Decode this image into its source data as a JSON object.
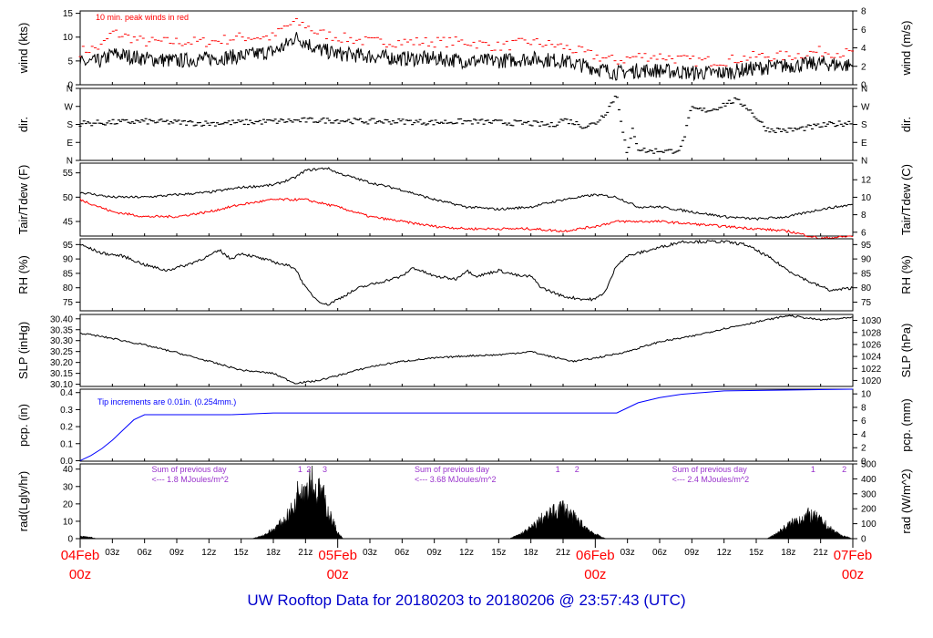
{
  "page_title": "UW Rooftop Data for 20180203  to  20180206 @ 23:57:43  (UTC)",
  "colors": {
    "line": "#000000",
    "peak": "#ff0000",
    "dew": "#ff0000",
    "precip": "#0000ff",
    "annotation": "#9933cc",
    "date_label": "#ff0000",
    "title": "#0000cc"
  },
  "chart_data": [
    {
      "id": "wind",
      "type": "line",
      "ylabel_left": "wind (kts)",
      "ylabel_right": "wind (m/s)",
      "yticks_left": [
        "0",
        "5",
        "10",
        "15"
      ],
      "yticks_right": [
        "0",
        "2",
        "4",
        "6",
        "8"
      ],
      "annotation": "10 min. peak winds in red",
      "series": [
        {
          "name": "10 min. peak winds",
          "style": "dash",
          "color": "peak",
          "x": [
            0,
            2,
            3,
            6,
            9,
            12,
            15,
            18,
            19,
            20,
            21,
            22,
            24,
            27,
            30,
            33,
            36,
            39,
            42,
            45,
            48,
            50,
            52,
            54,
            57,
            60,
            63,
            66,
            69,
            72
          ],
          "y": [
            7,
            8,
            11,
            9,
            9,
            9,
            10,
            10,
            12,
            13,
            12.5,
            11,
            10,
            9,
            9,
            9,
            9,
            8,
            9,
            8,
            6,
            5,
            6,
            6,
            5,
            5,
            6,
            6,
            7,
            6.5
          ]
        },
        {
          "name": "wind",
          "style": "line",
          "color": "line",
          "x": [
            0,
            2,
            3,
            6,
            9,
            12,
            15,
            18,
            19,
            20,
            21,
            22,
            24,
            27,
            30,
            33,
            36,
            39,
            42,
            45,
            48,
            50,
            52,
            54,
            57,
            60,
            63,
            66,
            69,
            72
          ],
          "y": [
            4.5,
            5,
            6.5,
            5.5,
            5,
            5.5,
            6,
            7,
            8,
            10,
            9,
            7.5,
            6.5,
            6,
            5.5,
            5.5,
            5,
            5,
            5.5,
            5,
            3.5,
            2.5,
            3,
            3,
            2.5,
            2.5,
            3.5,
            4,
            4.5,
            4
          ]
        }
      ]
    },
    {
      "id": "dir",
      "type": "scatter",
      "ylabel_left": "dir.",
      "ylabel_right": "dir.",
      "yticks_left": [
        "N",
        "E",
        "S",
        "W",
        "N"
      ],
      "yticks_right": [
        "N",
        "E",
        "S",
        "W",
        "N"
      ],
      "series": [
        {
          "name": "direction",
          "color": "line",
          "x": [
            0,
            3,
            6,
            9,
            12,
            15,
            18,
            21,
            24,
            27,
            30,
            33,
            36,
            39,
            42,
            44,
            45,
            46,
            47,
            48,
            49,
            50,
            51,
            51.5,
            52,
            53,
            54,
            55,
            56,
            57,
            58,
            59,
            60,
            61,
            62,
            64,
            66,
            68,
            70,
            72
          ],
          "y": [
            185,
            190,
            195,
            190,
            185,
            190,
            195,
            200,
            200,
            195,
            195,
            190,
            195,
            190,
            185,
            175,
            205,
            190,
            170,
            185,
            240,
            330,
            20,
            160,
            60,
            45,
            50,
            45,
            60,
            260,
            250,
            255,
            280,
            300,
            275,
            155,
            150,
            165,
            180,
            190
          ]
        }
      ]
    },
    {
      "id": "temp",
      "type": "line",
      "ylabel_left": "Tair/Tdew (F)",
      "ylabel_right": "Tair/Tdew (C)",
      "yticks_left": [
        "45",
        "50",
        "55"
      ],
      "yticks_right": [
        "6",
        "8",
        "10",
        "12"
      ],
      "series": [
        {
          "name": "Tair",
          "color": "line",
          "x": [
            0,
            3,
            6,
            9,
            12,
            15,
            18,
            20,
            21,
            23,
            24,
            27,
            30,
            33,
            36,
            39,
            42,
            45,
            48,
            50,
            52,
            54,
            57,
            60,
            63,
            66,
            69,
            72
          ],
          "y": [
            51,
            50,
            50,
            50.5,
            51,
            52,
            52.5,
            54,
            55.5,
            56,
            55,
            53,
            51.5,
            49.5,
            48,
            47.5,
            48,
            49.5,
            50.5,
            50,
            48,
            48,
            47,
            46,
            45.5,
            46,
            47.5,
            48.5
          ]
        },
        {
          "name": "Tdew",
          "color": "dew",
          "x": [
            0,
            3,
            6,
            9,
            12,
            15,
            18,
            21,
            24,
            27,
            30,
            33,
            36,
            39,
            42,
            45,
            48,
            50,
            52,
            54,
            57,
            60,
            63,
            66,
            69,
            72
          ],
          "y": [
            49.5,
            47,
            46,
            46,
            47,
            48.5,
            49.5,
            49.5,
            48,
            46,
            45,
            44,
            43.5,
            43.5,
            43.5,
            43,
            44,
            45,
            45,
            45,
            44.5,
            44,
            43.5,
            43,
            41.5,
            42
          ]
        }
      ]
    },
    {
      "id": "rh",
      "type": "line",
      "ylabel_left": "RH (%)",
      "ylabel_right": "RH (%)",
      "yticks_left": [
        "75",
        "80",
        "85",
        "90",
        "95"
      ],
      "yticks_right": [
        "75",
        "80",
        "85",
        "90",
        "95"
      ],
      "series": [
        {
          "name": "RH",
          "color": "line",
          "x": [
            0,
            2,
            4,
            6,
            8,
            10,
            12,
            13,
            14,
            15,
            16,
            18,
            20,
            21,
            22,
            23,
            24,
            26,
            28,
            30,
            31,
            33,
            35,
            36,
            37,
            39,
            41,
            42,
            43,
            45,
            47,
            48,
            49,
            50,
            51,
            52,
            54,
            56,
            58,
            60,
            62,
            64,
            66,
            68,
            70,
            72
          ],
          "y": [
            95,
            92,
            91,
            88,
            86,
            88,
            91,
            93,
            90,
            92,
            91,
            89,
            87,
            80,
            76,
            74,
            76,
            80,
            82,
            84,
            87,
            84,
            83,
            86,
            84,
            86,
            84,
            84,
            80,
            77,
            76,
            76,
            79,
            88,
            91,
            92,
            94,
            96,
            96,
            96,
            95,
            91,
            86,
            82,
            79,
            80
          ]
        }
      ]
    },
    {
      "id": "slp",
      "type": "line",
      "ylabel_left": "SLP (inHg)",
      "ylabel_right": "SLP (hPa)",
      "yticks_left": [
        "30.10",
        "30.15",
        "30.20",
        "30.25",
        "30.30",
        "30.35",
        "30.40"
      ],
      "yticks_right": [
        "1020",
        "1022",
        "1024",
        "1026",
        "1028",
        "1030"
      ],
      "series": [
        {
          "name": "SLP",
          "color": "line",
          "x": [
            0,
            3,
            6,
            9,
            12,
            15,
            18,
            20,
            22,
            24,
            27,
            30,
            33,
            36,
            39,
            42,
            44,
            46,
            48,
            51,
            54,
            57,
            60,
            63,
            66,
            69,
            72
          ],
          "y": [
            30.335,
            30.31,
            30.28,
            30.245,
            30.205,
            30.165,
            30.15,
            30.105,
            30.115,
            30.14,
            30.18,
            30.205,
            30.22,
            30.23,
            30.235,
            30.25,
            30.225,
            30.205,
            30.22,
            30.25,
            30.295,
            30.32,
            30.355,
            30.385,
            30.415,
            30.395,
            30.405
          ]
        }
      ]
    },
    {
      "id": "pcp",
      "type": "line",
      "ylabel_left": "pcp. (in)",
      "ylabel_right": "pcp. (mm)",
      "yticks_left": [
        "0.0",
        "0.1",
        "0.2",
        "0.3",
        "0.4"
      ],
      "yticks_right": [
        "0",
        "2",
        "4",
        "6",
        "8",
        "10"
      ],
      "annotation": "Tip increments are 0.01in. (0.254mm.)",
      "series": [
        {
          "name": "precip",
          "color": "precip",
          "x": [
            0,
            1,
            2,
            3,
            4,
            5,
            6,
            14,
            18,
            50,
            51,
            52,
            54,
            56,
            58,
            60,
            72
          ],
          "y": [
            0,
            0.03,
            0.07,
            0.12,
            0.18,
            0.24,
            0.27,
            0.27,
            0.28,
            0.28,
            0.31,
            0.34,
            0.37,
            0.39,
            0.4,
            0.41,
            0.42
          ]
        }
      ]
    },
    {
      "id": "rad",
      "type": "area",
      "ylabel_left": "rad(Lgly/hr)",
      "ylabel_right": "rad (W/m^2)",
      "yticks_left": [
        "0",
        "10",
        "20",
        "30",
        "40"
      ],
      "yticks_right": [
        "0",
        "100",
        "200",
        "300",
        "400",
        "500"
      ],
      "series": [
        {
          "name": "radiation",
          "color": "line",
          "x": [
            0,
            1,
            1.5,
            16,
            17,
            18,
            19,
            20,
            20.5,
            21,
            21.5,
            22,
            22.5,
            23,
            23.5,
            24,
            24.5,
            40,
            41,
            42,
            43,
            44,
            45,
            46,
            47,
            48,
            49,
            64,
            65,
            66,
            67,
            68,
            69,
            70,
            71,
            72
          ],
          "y": [
            1.5,
            1,
            0,
            0,
            2,
            6,
            12,
            22,
            38,
            34,
            42,
            30,
            32,
            20,
            12,
            4,
            0,
            0,
            3,
            7,
            13,
            17,
            21,
            14,
            8,
            3,
            0,
            0,
            4,
            9,
            13,
            16,
            12,
            6,
            2,
            0
          ]
        }
      ],
      "annotations": [
        {
          "text": "Sum of previous day",
          "x": 7
        },
        {
          "text": "<--- 1.8 MJoules/m^2",
          "x": 7
        },
        {
          "text": "Sum of previous day",
          "x": 31.5
        },
        {
          "text": "<--- 3.68 MJoules/m^2",
          "x": 31.5
        },
        {
          "text": "Sum of previous day",
          "x": 55.5
        },
        {
          "text": "<--- 2.4 MJoules/m^2",
          "x": 55.5
        }
      ],
      "markers": [
        {
          "text": "1",
          "x": 20.5
        },
        {
          "text": "2",
          "x": 21.3
        },
        {
          "text": "3",
          "x": 22.8
        },
        {
          "text": "1",
          "x": 44.5
        },
        {
          "text": "2",
          "x": 46.3
        },
        {
          "text": "1",
          "x": 68.3
        },
        {
          "text": "2",
          "x": 71.2
        }
      ]
    }
  ],
  "x_axis": {
    "range": [
      0,
      72
    ],
    "hour_ticks": [
      "03z",
      "06z",
      "09z",
      "12z",
      "15z",
      "18z",
      "21z",
      "03z",
      "06z",
      "09z",
      "12z",
      "15z",
      "18z",
      "21z",
      "03z",
      "06z",
      "09z",
      "12z",
      "15z",
      "18z",
      "21z"
    ],
    "date_labels": [
      {
        "date": "04Feb",
        "hour": "00z",
        "x": 0
      },
      {
        "date": "05Feb",
        "hour": "00z",
        "x": 24
      },
      {
        "date": "06Feb",
        "hour": "00z",
        "x": 48
      },
      {
        "date": "07Feb",
        "hour": "00z",
        "x": 72
      }
    ]
  }
}
